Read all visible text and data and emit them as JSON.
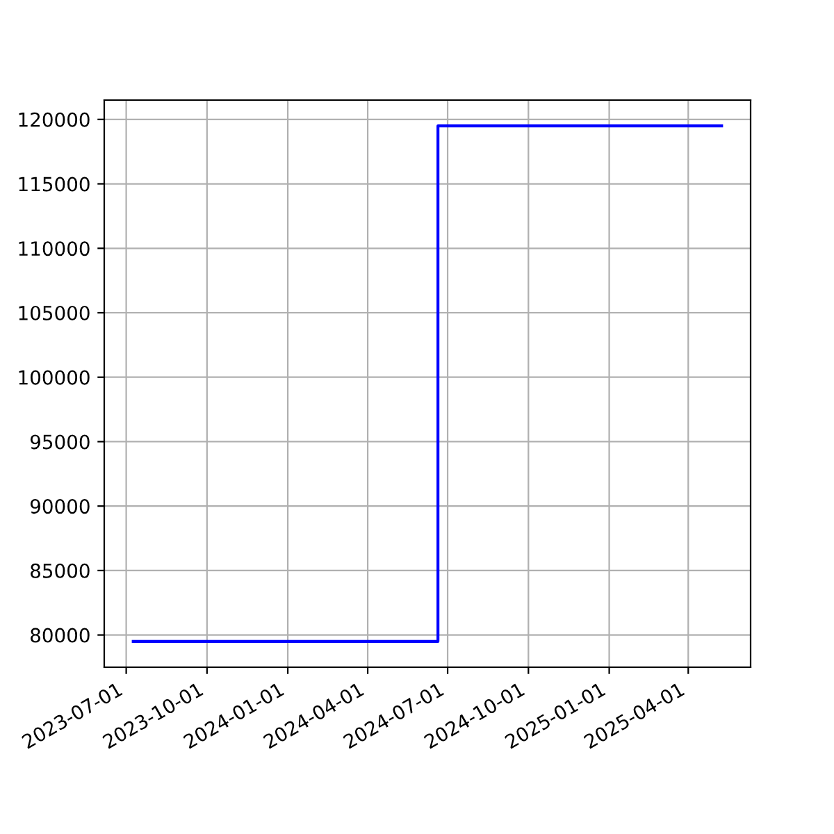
{
  "chart_data": {
    "type": "step",
    "x": [
      "2023-07-09",
      "2024-06-20",
      "2025-05-09"
    ],
    "series": [
      {
        "color": "#0000ff",
        "values": [
          79500,
          119500,
          119500
        ]
      }
    ],
    "xlim": [
      "2023-06-06",
      "2025-06-11"
    ],
    "xticks": [
      "2023-07-01",
      "2023-10-01",
      "2024-01-01",
      "2024-04-01",
      "2024-07-01",
      "2024-10-01",
      "2025-01-01",
      "2025-04-01"
    ],
    "ylim": [
      77500,
      121500
    ],
    "yticks": [
      80000,
      85000,
      90000,
      95000,
      100000,
      105000,
      110000,
      115000,
      120000
    ],
    "grid": true
  }
}
